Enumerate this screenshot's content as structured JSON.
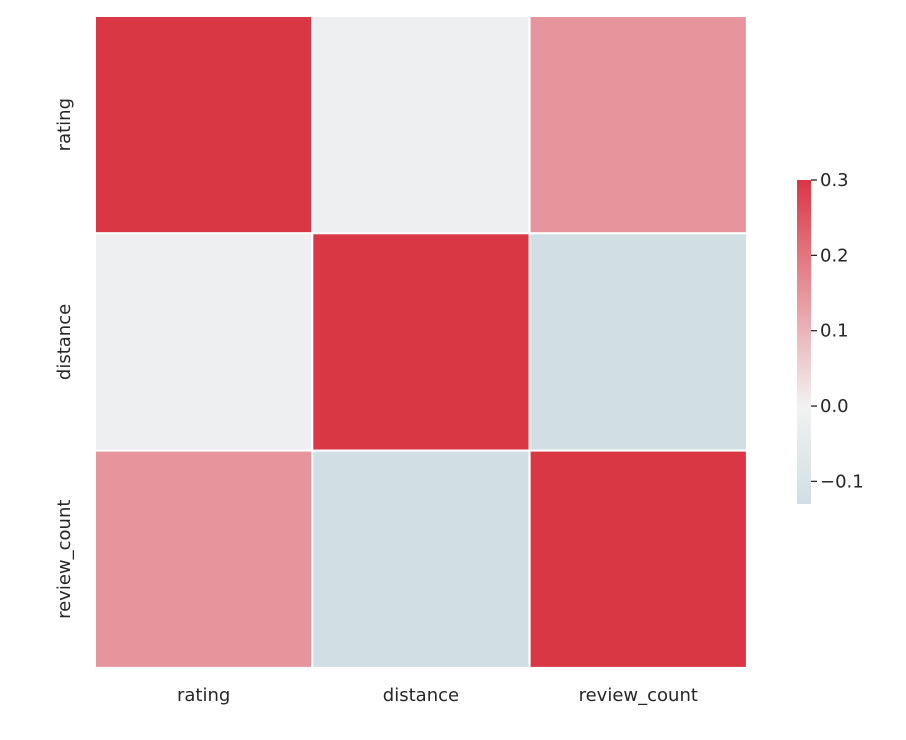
{
  "chart_data": {
    "type": "heatmap",
    "x_labels": [
      "rating",
      "distance",
      "review_count"
    ],
    "y_labels": [
      "rating",
      "distance",
      "review_count"
    ],
    "values": [
      [
        0.3,
        -0.02,
        0.15
      ],
      [
        -0.02,
        0.3,
        -0.13
      ],
      [
        0.15,
        -0.13,
        0.3
      ]
    ],
    "colorbar": {
      "vmin": -0.13,
      "vmax": 0.3,
      "center": 0.0,
      "ticks": [
        0.3,
        0.2,
        0.1,
        0.0,
        -0.1
      ],
      "tick_labels": [
        "0.3",
        "0.2",
        "0.1",
        "0.0",
        "−0.1"
      ]
    },
    "colors": {
      "negative": "#a6c4cf",
      "center": "#f2f2f2",
      "positive": "#da3745",
      "cell_border": "#ffffff"
    }
  }
}
